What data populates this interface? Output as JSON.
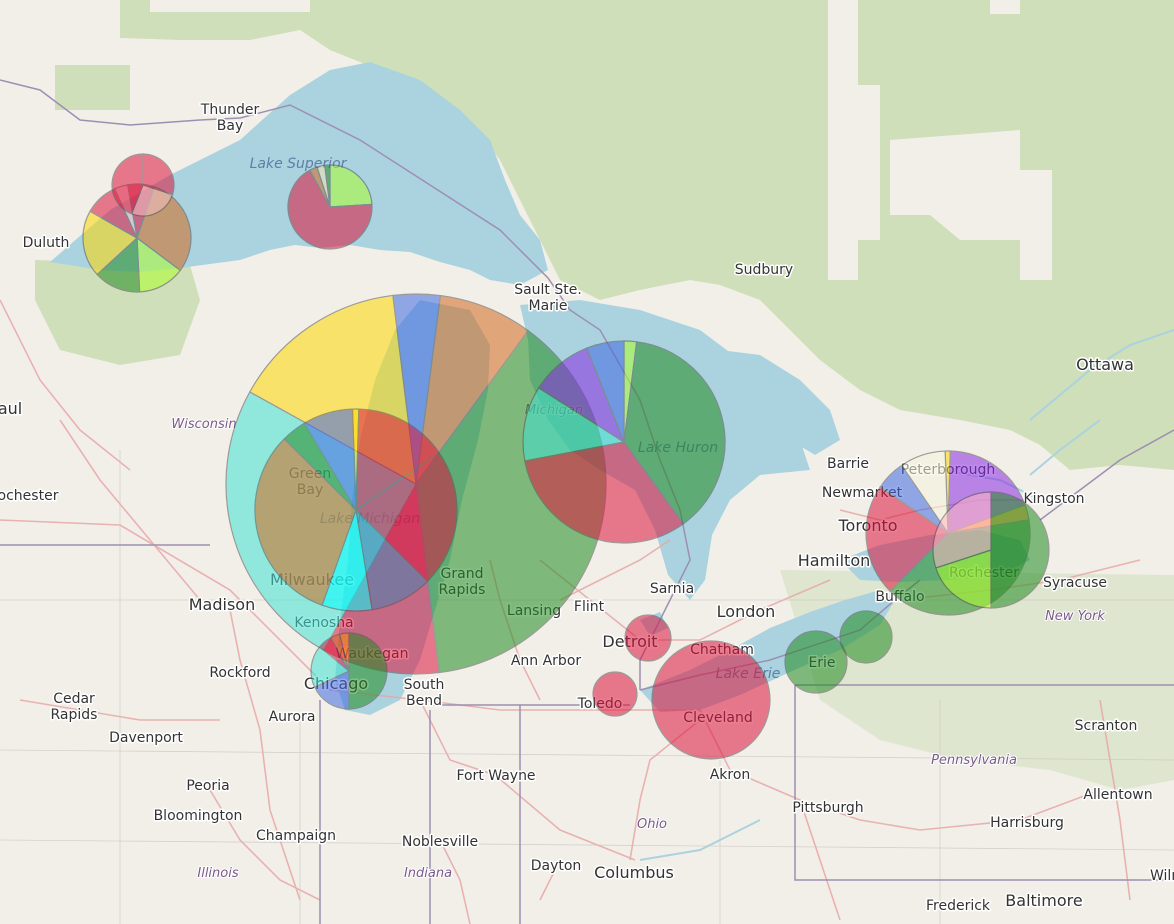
{
  "map": {
    "colors": {
      "land": "#f2efe9",
      "forest": "#c8dcb0",
      "water": "#aad3df",
      "roads": "#e7a7a7",
      "border": "#9e8fb2",
      "pie_stroke": "#555555"
    },
    "cities": [
      {
        "id": "thunder-bay",
        "text": "Thunder\nBay"
      },
      {
        "id": "duluth",
        "text": "Duluth"
      },
      {
        "id": "sault",
        "text": "Sault Ste.\nMarie"
      },
      {
        "id": "sudbury",
        "text": "Sudbury"
      },
      {
        "id": "ottawa",
        "text": "Ottawa"
      },
      {
        "id": "barrie",
        "text": "Barrie"
      },
      {
        "id": "peterborough",
        "text": "Peterborough"
      },
      {
        "id": "kingston",
        "text": "Kingston"
      },
      {
        "id": "newmarket",
        "text": "Newmarket"
      },
      {
        "id": "toronto",
        "text": "Toronto"
      },
      {
        "id": "hamilton",
        "text": "Hamilton"
      },
      {
        "id": "rochester",
        "text": "Rochester"
      },
      {
        "id": "syracuse",
        "text": "Syracuse"
      },
      {
        "id": "buffalo",
        "text": "Buffalo"
      },
      {
        "id": "london",
        "text": "London"
      },
      {
        "id": "sarnia",
        "text": "Sarnia"
      },
      {
        "id": "chatham",
        "text": "Chatham"
      },
      {
        "id": "flint",
        "text": "Flint"
      },
      {
        "id": "detroit",
        "text": "Detroit"
      },
      {
        "id": "ann-arbor",
        "text": "Ann Arbor"
      },
      {
        "id": "lansing",
        "text": "Lansing"
      },
      {
        "id": "grand-rapids",
        "text": "Grand\nRapids"
      },
      {
        "id": "toledo",
        "text": "Toledo"
      },
      {
        "id": "cleveland",
        "text": "Cleveland"
      },
      {
        "id": "akron",
        "text": "Akron"
      },
      {
        "id": "erie",
        "text": "Erie"
      },
      {
        "id": "pittsburgh",
        "text": "Pittsburgh"
      },
      {
        "id": "scranton",
        "text": "Scranton"
      },
      {
        "id": "allentown",
        "text": "Allentown"
      },
      {
        "id": "harrisburg",
        "text": "Harrisburg"
      },
      {
        "id": "baltimore",
        "text": "Baltimore"
      },
      {
        "id": "frederick",
        "text": "Frederick"
      },
      {
        "id": "wilming",
        "text": "Wilming"
      },
      {
        "id": "columbus",
        "text": "Columbus"
      },
      {
        "id": "dayton",
        "text": "Dayton"
      },
      {
        "id": "fort-wayne",
        "text": "Fort Wayne"
      },
      {
        "id": "noblesville",
        "text": "Noblesville"
      },
      {
        "id": "south-bend",
        "text": "South\nBend"
      },
      {
        "id": "chicago",
        "text": "Chicago"
      },
      {
        "id": "kenosha",
        "text": "Kenosha"
      },
      {
        "id": "waukegan",
        "text": "Waukegan"
      },
      {
        "id": "milwaukee",
        "text": "Milwaukee"
      },
      {
        "id": "green-bay",
        "text": "Green\nBay"
      },
      {
        "id": "madison",
        "text": "Madison"
      },
      {
        "id": "rockford",
        "text": "Rockford"
      },
      {
        "id": "aurora",
        "text": "Aurora"
      },
      {
        "id": "cedar-rapids",
        "text": "Cedar\nRapids"
      },
      {
        "id": "davenport",
        "text": "Davenport"
      },
      {
        "id": "peoria",
        "text": "Peoria"
      },
      {
        "id": "bloomington",
        "text": "Bloomington"
      },
      {
        "id": "champaign",
        "text": "Champaign"
      },
      {
        "id": "rochester-mn",
        "text": "ochester"
      },
      {
        "id": "st-paul",
        "text": "aul"
      }
    ],
    "regions": [
      {
        "id": "wisconsin",
        "text": "Wisconsin"
      },
      {
        "id": "michigan",
        "text": "Michigan"
      },
      {
        "id": "illinois",
        "text": "Illinois"
      },
      {
        "id": "indiana",
        "text": "Indiana"
      },
      {
        "id": "ohio",
        "text": "Ohio"
      },
      {
        "id": "pennsylvania",
        "text": "Pennsylvania"
      },
      {
        "id": "new-york",
        "text": "New York"
      }
    ],
    "water_labels": [
      {
        "id": "lake-superior",
        "text": "Lake Superior"
      },
      {
        "id": "lake-huron",
        "text": "Lake Huron"
      },
      {
        "id": "lake-michigan",
        "text": "Lake Michigan"
      },
      {
        "id": "lake-erie",
        "text": "Lake Erie"
      }
    ],
    "pie_charts": [
      {
        "id": "superior-west-small",
        "slices": [
          {
            "value": 30,
            "color": "#dc143c"
          },
          {
            "value": 26,
            "color": "#f5c0c0"
          },
          {
            "value": 44,
            "color": "#dc143c"
          }
        ]
      },
      {
        "id": "superior-west-large",
        "slices": [
          {
            "value": 8,
            "color": "#dc143c"
          },
          {
            "value": 30,
            "color": "#d2691e"
          },
          {
            "value": 14,
            "color": "#adff2f"
          },
          {
            "value": 14,
            "color": "#228b22"
          },
          {
            "value": 20,
            "color": "#ffd700"
          },
          {
            "value": 10,
            "color": "#dc143c"
          },
          {
            "value": 4,
            "color": "#f5c0c0"
          }
        ]
      },
      {
        "id": "superior-east",
        "slices": [
          {
            "value": 24,
            "color": "#adff2f"
          },
          {
            "value": 68,
            "color": "#dc143c"
          },
          {
            "value": 3,
            "color": "#d2691e"
          },
          {
            "value": 3,
            "color": "#f5deb3"
          },
          {
            "value": 2,
            "color": "#228b22"
          }
        ]
      },
      {
        "id": "michigan-large",
        "slices": [
          {
            "value": 4,
            "color": "#4169e1"
          },
          {
            "value": 8,
            "color": "#d2691e"
          },
          {
            "value": 38,
            "color": "#228b22"
          },
          {
            "value": 10,
            "color": "#dc143c"
          },
          {
            "value": 25,
            "color": "#40e0d0"
          },
          {
            "value": 15,
            "color": "#ffd700"
          }
        ]
      },
      {
        "id": "michigan-medium",
        "slices": [
          {
            "value": 1,
            "color": "#ffd700"
          },
          {
            "value": 15,
            "color": "#dc143c"
          },
          {
            "value": 22,
            "color": "#dc143c"
          },
          {
            "value": 10,
            "color": "#4682b4"
          },
          {
            "value": 8,
            "color": "#00ffff"
          },
          {
            "value": 32,
            "color": "#d2691e"
          },
          {
            "value": 4,
            "color": "#228b22"
          },
          {
            "value": 8,
            "color": "#4169e1"
          }
        ]
      },
      {
        "id": "chicago",
        "slices": [
          {
            "value": 50,
            "color": "#228b22"
          },
          {
            "value": 18,
            "color": "#4169e1"
          },
          {
            "value": 18,
            "color": "#40e0d0"
          },
          {
            "value": 6,
            "color": "#dc143c"
          },
          {
            "value": 4,
            "color": "#d2691e"
          },
          {
            "value": 4,
            "color": "#ff8c00"
          }
        ]
      },
      {
        "id": "huron",
        "slices": [
          {
            "value": 2,
            "color": "#adff2f"
          },
          {
            "value": 38,
            "color": "#228b22"
          },
          {
            "value": 32,
            "color": "#dc143c"
          },
          {
            "value": 12,
            "color": "#40e0d0"
          },
          {
            "value": 10,
            "color": "#8a2be2"
          },
          {
            "value": 6,
            "color": "#4169e1"
          }
        ]
      },
      {
        "id": "ontario-west",
        "slices": [
          {
            "value": 1,
            "color": "#ffd700"
          },
          {
            "value": 19,
            "color": "#8a2be2"
          },
          {
            "value": 3,
            "color": "#ff8c00"
          },
          {
            "value": 40,
            "color": "#228b22"
          },
          {
            "value": 22,
            "color": "#dc143c"
          },
          {
            "value": 6,
            "color": "#4169e1"
          },
          {
            "value": 9,
            "color": "#f5f5dc"
          }
        ]
      },
      {
        "id": "ontario-east",
        "slices": [
          {
            "value": 50,
            "color": "#228b22"
          },
          {
            "value": 20,
            "color": "#adff2f"
          },
          {
            "value": 30,
            "color": "#ffb6c1"
          }
        ]
      },
      {
        "id": "detroit",
        "slices": [
          {
            "value": 100,
            "color": "#dc143c"
          }
        ]
      },
      {
        "id": "toledo",
        "slices": [
          {
            "value": 100,
            "color": "#dc143c"
          }
        ]
      },
      {
        "id": "cleveland",
        "slices": [
          {
            "value": 100,
            "color": "#dc143c"
          }
        ]
      },
      {
        "id": "erie",
        "slices": [
          {
            "value": 100,
            "color": "#228b22"
          }
        ]
      },
      {
        "id": "erie-east",
        "slices": [
          {
            "value": 100,
            "color": "#228b22"
          }
        ]
      }
    ]
  }
}
